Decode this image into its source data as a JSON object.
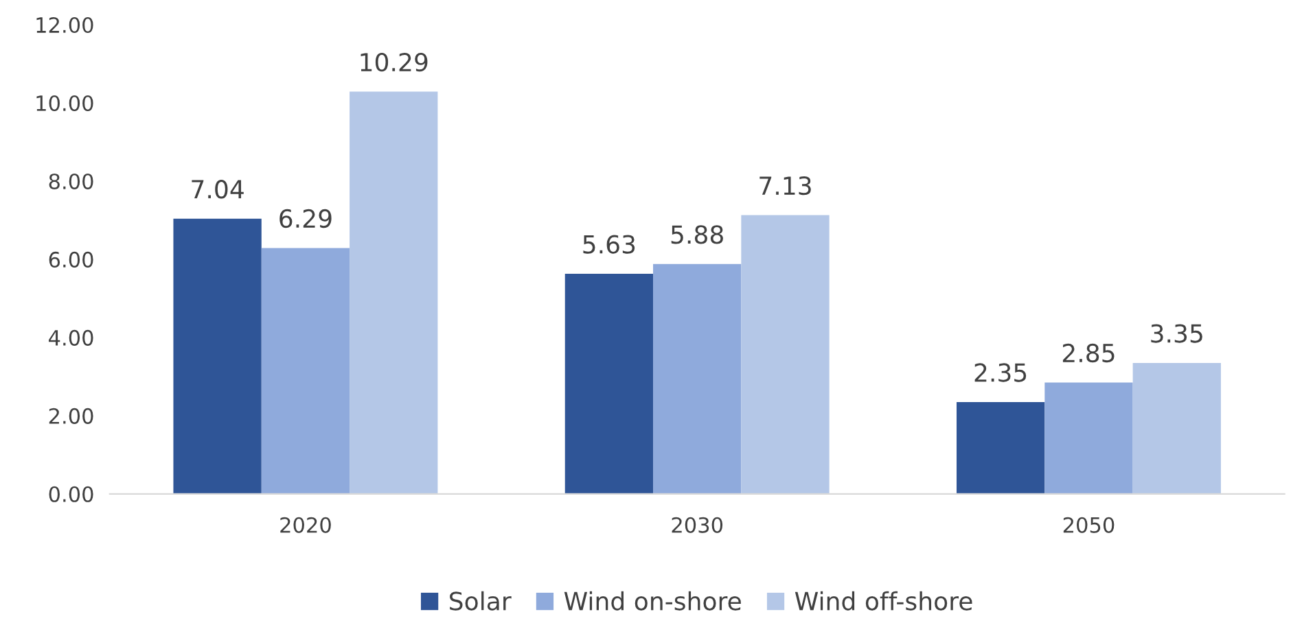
{
  "chart_data": {
    "type": "bar",
    "categories": [
      "2020",
      "2030",
      "2050"
    ],
    "series": [
      {
        "name": "Solar",
        "color": "#2f5597",
        "values": [
          7.04,
          5.63,
          2.35
        ]
      },
      {
        "name": "Wind on-shore",
        "color": "#8faadc",
        "values": [
          6.29,
          5.88,
          2.85
        ]
      },
      {
        "name": "Wind off-shore",
        "color": "#b4c7e7",
        "values": [
          10.29,
          7.13,
          3.35
        ]
      }
    ],
    "ylim": [
      0,
      12
    ],
    "yticks": [
      {
        "value": 0,
        "label": "0.00"
      },
      {
        "value": 2,
        "label": "2.00"
      },
      {
        "value": 4,
        "label": "4.00"
      },
      {
        "value": 6,
        "label": "6.00"
      },
      {
        "value": 8,
        "label": "8.00"
      },
      {
        "value": 10,
        "label": "10.00"
      },
      {
        "value": 12,
        "label": "12.00"
      }
    ],
    "data_labels": true,
    "grid": false,
    "legend": "bottom"
  }
}
